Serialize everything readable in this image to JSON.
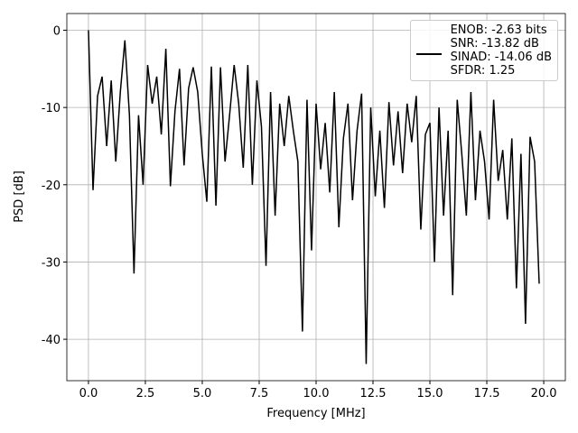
{
  "chart_data": {
    "type": "line",
    "xlabel": "Frequency [MHz]",
    "ylabel": "PSD [dB]",
    "x": [
      0.0,
      0.2,
      0.4,
      0.6,
      0.8,
      1.0,
      1.2,
      1.4,
      1.6,
      1.8,
      2.0,
      2.2,
      2.4,
      2.6,
      2.8,
      3.0,
      3.2,
      3.4,
      3.6,
      3.8,
      4.0,
      4.2,
      4.4,
      4.6,
      4.8,
      5.0,
      5.2,
      5.4,
      5.6,
      5.8,
      6.0,
      6.2,
      6.4,
      6.6,
      6.8,
      7.0,
      7.2,
      7.4,
      7.6,
      7.8,
      8.0,
      8.2,
      8.4,
      8.6,
      8.8,
      9.0,
      9.2,
      9.4,
      9.6,
      9.8,
      10.0,
      10.2,
      10.4,
      10.6,
      10.8,
      11.0,
      11.2,
      11.4,
      11.6,
      11.8,
      12.0,
      12.2,
      12.4,
      12.6,
      12.8,
      13.0,
      13.2,
      13.4,
      13.6,
      13.8,
      14.0,
      14.2,
      14.4,
      14.6,
      14.8,
      15.0,
      15.2,
      15.4,
      15.6,
      15.8,
      16.0,
      16.2,
      16.4,
      16.6,
      16.8,
      17.0,
      17.2,
      17.4,
      17.6,
      17.8,
      18.0,
      18.2,
      18.4,
      18.6,
      18.8,
      19.0,
      19.2,
      19.4,
      19.6,
      19.8
    ],
    "series": [
      {
        "name": "ENOB: -2.63 bits\nSNR: -13.82 dB\nSINAD: -14.06 dB\nSFDR: 1.25",
        "color": "#000000",
        "values": [
          0,
          -20.7,
          -8.5,
          -6,
          -15,
          -6.5,
          -17,
          -8,
          -1.3,
          -11,
          -31.5,
          -11,
          -20,
          -4.5,
          -9.5,
          -6,
          -13.5,
          -2.4,
          -20.2,
          -10.5,
          -5,
          -17.5,
          -7.5,
          -4.8,
          -8,
          -16,
          -22.2,
          -4.7,
          -22.7,
          -4.8,
          -17,
          -11,
          -4.5,
          -9.5,
          -17.8,
          -4.5,
          -20,
          -6.5,
          -12.5,
          -30.5,
          -8,
          -24,
          -9.5,
          -15,
          -8.5,
          -13,
          -17,
          -39,
          -9,
          -28.5,
          -9.5,
          -18,
          -12,
          -21,
          -8,
          -25.5,
          -14,
          -9.5,
          -22,
          -13,
          -8.2,
          -43.2,
          -10,
          -21.5,
          -13,
          -23,
          -9.3,
          -17.5,
          -10.5,
          -18.5,
          -9.5,
          -14.5,
          -8.5,
          -25.8,
          -13.5,
          -12,
          -30,
          -10,
          -24,
          -13,
          -34.3,
          -9,
          -16,
          -24,
          -8,
          -22,
          -13,
          -17,
          -24.5,
          -9,
          -19.5,
          -15.5,
          -24.5,
          -14,
          -33.4,
          -16,
          -38,
          -13.8,
          -17,
          -32.8
        ]
      }
    ],
    "xlim": [
      -0.95,
      20.95
    ],
    "ylim": [
      -45.36,
      2.16
    ],
    "xticks": [
      {
        "value": 0,
        "label": "0.0"
      },
      2.5,
      {
        "value": 5,
        "label": "5.0"
      },
      7.5,
      {
        "value": 10,
        "label": "10.0"
      },
      12.5,
      {
        "value": 15,
        "label": "15.0"
      },
      17.5,
      {
        "value": 20,
        "label": "20.0"
      }
    ],
    "yticks": [
      0,
      -10,
      -20,
      -30,
      -40
    ],
    "grid": true,
    "legend": "upper right"
  }
}
